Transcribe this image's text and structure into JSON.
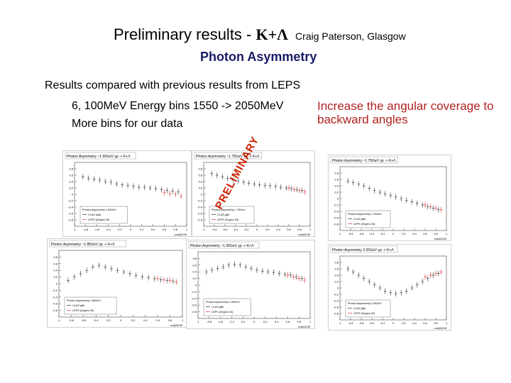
{
  "header": {
    "title": "Preliminary results -",
    "reaction": "K+Λ",
    "author": "Craig Paterson, Glasgow",
    "subtitle": "Photon Asymmetry"
  },
  "bullets": [
    "Results compared with previous results from LEPS",
    "6, 100MeV Energy bins 1550 -> 2050MeV",
    "More bins for our data"
  ],
  "note": "Increase the angular coverage to backward angles",
  "watermark": "PRELIMINARY",
  "colors": {
    "title": "#000000",
    "subtitle": "#1a1a66",
    "note": "#b22222",
    "clas": "#333333",
    "leps": "#e03030",
    "watermark": "#cc2200"
  },
  "panels": [
    {
      "title": "Photon Asymmetry ~1.55GeV  γp -> K+Λ",
      "legend": [
        "Photon Asymmetry 1.55GeV",
        "CLAS data",
        "LEPS (Zegers 03)"
      ]
    },
    {
      "title": "Photon Asymmetry ~1.75GeV  γp -> K+Λ",
      "legend": [
        "Photon Asymmetry 1.75GeV",
        "CLAS g8b",
        "LEPS (Zegers 03)"
      ]
    },
    {
      "title": "Photon Asymmetry ~1.75GeV  γp -> K+Λ",
      "legend": [
        "Photon Asymmetry 1.75GeV",
        "CLAS g8b",
        "LEPS (Zegers 03)"
      ]
    },
    {
      "title": "Photon Asymmetry ~1.85GeV  γp -> K+Λ",
      "legend": [
        "Photon Asymmetry 1.85GeV",
        "CLAS g8b",
        "LEPS (Zegers 03)"
      ]
    },
    {
      "title": "Photon Asymmetry ~1.95GeV  γp -> K+Λ",
      "legend": [
        "Photon Asymmetry 1.95GeV",
        "CLAS g8b",
        "LEPS (Zegers 03)"
      ]
    },
    {
      "title": "Photon Asymmetry 2.05GeV  γp -> K+Λ",
      "legend": [
        "Photon Asymmetry 2.05GeV",
        "CLAS g8b",
        "LEPS (Zegers 03)"
      ]
    }
  ],
  "axes": {
    "xticks": [
      "-1",
      "-0.8",
      "-0.6",
      "-0.4",
      "-0.2",
      "0",
      "0.2",
      "0.4",
      "0.6",
      "0.8",
      "1"
    ],
    "yticks": [
      "0.8",
      "0.6",
      "0.4",
      "0.2",
      "0",
      "-0.2",
      "-0.4",
      "-0.6",
      "-0.8"
    ],
    "xlabel": "cos(θ)CM"
  },
  "chart_data": [
    {
      "type": "scatter",
      "title": "Photon Asymmetry ~1.55GeV",
      "xlim": [
        -1,
        1
      ],
      "ylim": [
        -1,
        1
      ],
      "series": [
        {
          "name": "CLAS data",
          "x": [
            -0.85,
            -0.75,
            -0.65,
            -0.55,
            -0.45,
            -0.35,
            -0.25,
            -0.15,
            -0.05,
            0.05,
            0.15,
            0.25,
            0.35,
            0.45,
            0.55,
            0.65,
            0.75,
            0.85
          ],
          "y": [
            0.55,
            0.5,
            0.48,
            0.45,
            0.4,
            0.38,
            0.33,
            0.3,
            0.28,
            0.25,
            0.22,
            0.22,
            0.2,
            0.18,
            0.15,
            0.12,
            0.1,
            0.08
          ]
        },
        {
          "name": "LEPS (Zegers 03)",
          "x": [
            0.6,
            0.7,
            0.8,
            0.9
          ],
          "y": [
            0.05,
            0.02,
            0.0,
            -0.05
          ]
        }
      ]
    },
    {
      "type": "scatter",
      "title": "Photon Asymmetry ~1.75GeV",
      "xlim": [
        -1,
        1
      ],
      "ylim": [
        -1,
        1
      ],
      "series": [
        {
          "name": "CLAS g8b",
          "x": [
            -0.85,
            -0.75,
            -0.65,
            -0.55,
            -0.45,
            -0.35,
            -0.25,
            -0.15,
            -0.05,
            0.05,
            0.15,
            0.25,
            0.35,
            0.45,
            0.55,
            0.65,
            0.75,
            0.85
          ],
          "y": [
            0.65,
            0.6,
            0.55,
            0.5,
            0.45,
            0.42,
            0.38,
            0.35,
            0.32,
            0.3,
            0.28,
            0.27,
            0.25,
            0.22,
            0.2,
            0.18,
            0.15,
            0.12
          ]
        },
        {
          "name": "LEPS (Zegers 03)",
          "x": [
            0.6,
            0.7,
            0.8,
            0.9
          ],
          "y": [
            0.2,
            0.15,
            0.12,
            0.08
          ]
        }
      ]
    },
    {
      "type": "scatter",
      "title": "Photon Asymmetry ~1.75GeV",
      "xlim": [
        -1,
        1
      ],
      "ylim": [
        -1,
        1
      ],
      "series": [
        {
          "name": "CLAS g8b",
          "x": [
            -0.85,
            -0.75,
            -0.65,
            -0.55,
            -0.45,
            -0.35,
            -0.25,
            -0.15,
            -0.05,
            0.05,
            0.15,
            0.25,
            0.35,
            0.45,
            0.55,
            0.65,
            0.75,
            0.85
          ],
          "y": [
            0.55,
            0.5,
            0.45,
            0.4,
            0.32,
            0.25,
            0.2,
            0.15,
            0.1,
            0.05,
            0.0,
            -0.05,
            -0.1,
            -0.15,
            -0.2,
            -0.25,
            -0.3,
            -0.35
          ]
        },
        {
          "name": "LEPS (Zegers 03)",
          "x": [
            0.6,
            0.7,
            0.8,
            0.9
          ],
          "y": [
            -0.2,
            -0.25,
            -0.3,
            -0.35
          ]
        }
      ]
    },
    {
      "type": "scatter",
      "title": "Photon Asymmetry ~1.85GeV",
      "xlim": [
        -1,
        1
      ],
      "ylim": [
        -1,
        1
      ],
      "series": [
        {
          "name": "CLAS g8b",
          "x": [
            -0.85,
            -0.75,
            -0.65,
            -0.55,
            -0.45,
            -0.35,
            -0.25,
            -0.15,
            -0.05,
            0.05,
            0.15,
            0.25,
            0.35,
            0.45,
            0.55,
            0.65,
            0.75,
            0.85
          ],
          "y": [
            0.1,
            0.2,
            0.3,
            0.4,
            0.5,
            0.55,
            0.5,
            0.45,
            0.4,
            0.35,
            0.3,
            0.25,
            0.2,
            0.18,
            0.15,
            0.12,
            0.1,
            0.08
          ]
        },
        {
          "name": "LEPS (Zegers 03)",
          "x": [
            0.6,
            0.7,
            0.8,
            0.9
          ],
          "y": [
            0.15,
            0.12,
            0.1,
            0.05
          ]
        }
      ]
    },
    {
      "type": "scatter",
      "title": "Photon Asymmetry ~1.95GeV",
      "xlim": [
        -1,
        1
      ],
      "ylim": [
        -1,
        1
      ],
      "series": [
        {
          "name": "CLAS g8b",
          "x": [
            -0.85,
            -0.75,
            -0.65,
            -0.55,
            -0.45,
            -0.35,
            -0.25,
            -0.15,
            -0.05,
            0.05,
            0.15,
            0.25,
            0.35,
            0.45,
            0.55,
            0.65,
            0.75,
            0.85
          ],
          "y": [
            0.4,
            0.45,
            0.5,
            0.55,
            0.6,
            0.62,
            0.6,
            0.55,
            0.5,
            0.45,
            0.42,
            0.4,
            0.38,
            0.35,
            0.32,
            0.3,
            0.25,
            0.2
          ]
        },
        {
          "name": "LEPS (Zegers 03)",
          "x": [
            0.6,
            0.7,
            0.8,
            0.9
          ],
          "y": [
            0.3,
            0.25,
            0.2,
            0.15
          ]
        }
      ]
    },
    {
      "type": "scatter",
      "title": "Photon Asymmetry 2.05GeV",
      "xlim": [
        -1,
        1
      ],
      "ylim": [
        -1,
        1
      ],
      "series": [
        {
          "name": "CLAS g8b",
          "x": [
            -0.85,
            -0.75,
            -0.65,
            -0.55,
            -0.45,
            -0.35,
            -0.25,
            -0.15,
            -0.05,
            0.05,
            0.15,
            0.25,
            0.35,
            0.45,
            0.55,
            0.65,
            0.75,
            0.85
          ],
          "y": [
            0.6,
            0.5,
            0.4,
            0.3,
            0.2,
            0.1,
            0.0,
            -0.1,
            -0.15,
            -0.18,
            -0.15,
            -0.1,
            0.0,
            0.1,
            0.2,
            0.3,
            0.4,
            0.45
          ]
        },
        {
          "name": "LEPS (Zegers 03)",
          "x": [
            0.6,
            0.7,
            0.8,
            0.9
          ],
          "y": [
            0.35,
            0.4,
            0.45,
            0.5
          ]
        }
      ]
    }
  ]
}
